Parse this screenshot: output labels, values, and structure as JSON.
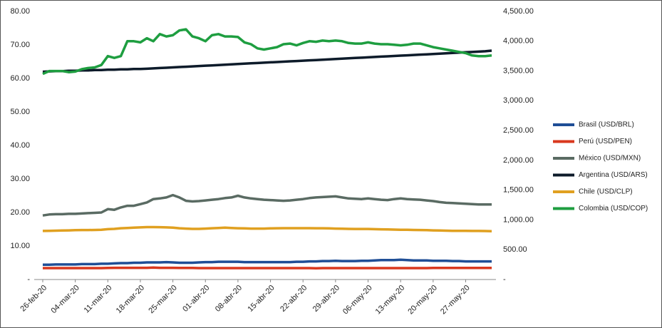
{
  "chart_data": {
    "type": "line",
    "categories": [
      "26-feb-20",
      null,
      null,
      null,
      null,
      "04-mar-20",
      null,
      null,
      null,
      null,
      "11-mar-20",
      null,
      null,
      null,
      null,
      "18-mar-20",
      null,
      null,
      null,
      null,
      "25-mar-20",
      null,
      null,
      null,
      null,
      "01-abr-20",
      null,
      null,
      null,
      null,
      "08-abr-20",
      null,
      null,
      null,
      null,
      "15-abr-20",
      null,
      null,
      null,
      null,
      "22-abr-20",
      null,
      null,
      null,
      null,
      "29-abr-20",
      null,
      null,
      null,
      null,
      "06-may-20",
      null,
      null,
      null,
      null,
      "13-may-20",
      null,
      null,
      null,
      null,
      "20-may-20",
      null,
      null,
      null,
      null,
      "27-may-20",
      null,
      null,
      null,
      null
    ],
    "ylim": [
      0,
      80
    ],
    "yticks": [
      {
        "value": 0,
        "label": "-"
      },
      {
        "value": 10,
        "label": "10.00"
      },
      {
        "value": 20,
        "label": "20.00"
      },
      {
        "value": 30,
        "label": "30.00"
      },
      {
        "value": 40,
        "label": "40.00"
      },
      {
        "value": 50,
        "label": "50.00"
      },
      {
        "value": 60,
        "label": "60.00"
      },
      {
        "value": 70,
        "label": "70.00"
      },
      {
        "value": 80,
        "label": "80.00"
      }
    ],
    "y2lim": [
      0,
      4500
    ],
    "y2ticks": [
      {
        "value": 0,
        "label": "-"
      },
      {
        "value": 500,
        "label": "500.00"
      },
      {
        "value": 1000,
        "label": "1,000.00"
      },
      {
        "value": 1500,
        "label": "1,500.00"
      },
      {
        "value": 2000,
        "label": "2,000.00"
      },
      {
        "value": 2500,
        "label": "2,500.00"
      },
      {
        "value": 3000,
        "label": "3,000.00"
      },
      {
        "value": 3500,
        "label": "3,500.00"
      },
      {
        "value": 4000,
        "label": "4,000.00"
      },
      {
        "value": 4500,
        "label": "4,500.00"
      }
    ],
    "legend": "right",
    "series": [
      {
        "name": "Brasil (USD/BRL)",
        "color": "#1f4e96",
        "values": [
          4.4,
          4.4,
          4.5,
          4.5,
          4.5,
          4.5,
          4.6,
          4.6,
          4.6,
          4.7,
          4.7,
          4.8,
          4.9,
          4.9,
          5.0,
          5.0,
          5.1,
          5.1,
          5.1,
          5.2,
          5.1,
          5.0,
          5.0,
          5.0,
          5.1,
          5.2,
          5.2,
          5.3,
          5.3,
          5.3,
          5.3,
          5.2,
          5.2,
          5.2,
          5.2,
          5.2,
          5.2,
          5.2,
          5.2,
          5.3,
          5.3,
          5.4,
          5.4,
          5.5,
          5.5,
          5.6,
          5.5,
          5.5,
          5.5,
          5.6,
          5.6,
          5.7,
          5.8,
          5.8,
          5.8,
          5.9,
          5.8,
          5.7,
          5.7,
          5.7,
          5.6,
          5.6,
          5.6,
          5.5,
          5.5,
          5.4,
          5.4,
          5.4,
          5.4,
          5.4
        ]
      },
      {
        "name": "Perú (USD/PEN)",
        "color": "#d9381e",
        "values": [
          3.4,
          3.4,
          3.4,
          3.4,
          3.4,
          3.4,
          3.4,
          3.4,
          3.4,
          3.4,
          3.45,
          3.5,
          3.5,
          3.5,
          3.5,
          3.5,
          3.5,
          3.55,
          3.5,
          3.5,
          3.5,
          3.45,
          3.45,
          3.45,
          3.4,
          3.4,
          3.4,
          3.4,
          3.4,
          3.4,
          3.4,
          3.4,
          3.4,
          3.4,
          3.4,
          3.4,
          3.4,
          3.4,
          3.4,
          3.4,
          3.4,
          3.4,
          3.35,
          3.4,
          3.4,
          3.4,
          3.4,
          3.4,
          3.4,
          3.4,
          3.4,
          3.4,
          3.4,
          3.4,
          3.4,
          3.4,
          3.4,
          3.4,
          3.4,
          3.4,
          3.45,
          3.45,
          3.45,
          3.45,
          3.45,
          3.45,
          3.45,
          3.45,
          3.45,
          3.45
        ]
      },
      {
        "name": "México (USD/MXN)",
        "color": "#5a6b63",
        "values": [
          19.1,
          19.4,
          19.5,
          19.5,
          19.6,
          19.6,
          19.7,
          19.8,
          19.9,
          20.0,
          21.0,
          20.8,
          21.5,
          22.0,
          22.0,
          22.5,
          23.0,
          24.0,
          24.2,
          24.5,
          25.2,
          24.5,
          23.5,
          23.3,
          23.4,
          23.6,
          23.8,
          24.0,
          24.3,
          24.5,
          25.0,
          24.5,
          24.2,
          24.0,
          23.8,
          23.7,
          23.6,
          23.5,
          23.6,
          23.8,
          24.0,
          24.3,
          24.5,
          24.6,
          24.7,
          24.8,
          24.5,
          24.2,
          24.1,
          24.0,
          24.2,
          24.0,
          23.8,
          23.7,
          24.0,
          24.2,
          24.0,
          23.9,
          23.8,
          23.6,
          23.4,
          23.1,
          22.9,
          22.8,
          22.7,
          22.6,
          22.5,
          22.4,
          22.4,
          22.4
        ]
      },
      {
        "name": "Argentina (USD/ARS)",
        "color": "#0d1b2a",
        "values": [
          62.0,
          62.1,
          62.2,
          62.2,
          62.3,
          62.3,
          62.4,
          62.4,
          62.5,
          62.5,
          62.6,
          62.6,
          62.7,
          62.7,
          62.8,
          62.8,
          62.9,
          63.0,
          63.1,
          63.2,
          63.3,
          63.4,
          63.5,
          63.6,
          63.7,
          63.8,
          63.9,
          64.0,
          64.1,
          64.2,
          64.3,
          64.4,
          64.5,
          64.6,
          64.7,
          64.8,
          64.9,
          65.0,
          65.1,
          65.2,
          65.3,
          65.4,
          65.5,
          65.6,
          65.7,
          65.8,
          65.9,
          66.0,
          66.1,
          66.2,
          66.3,
          66.4,
          66.5,
          66.6,
          66.7,
          66.8,
          66.9,
          67.0,
          67.1,
          67.2,
          67.3,
          67.4,
          67.5,
          67.6,
          67.7,
          67.8,
          67.9,
          68.0,
          68.1,
          68.3
        ]
      },
      {
        "name": "Chile (USD/CLP)",
        "color": "#e0a020",
        "axis": "y2",
        "values": [
          815,
          818,
          820,
          822,
          825,
          828,
          830,
          830,
          832,
          835,
          845,
          850,
          860,
          865,
          870,
          875,
          880,
          880,
          878,
          875,
          870,
          860,
          855,
          850,
          850,
          855,
          860,
          865,
          870,
          865,
          860,
          858,
          855,
          855,
          855,
          858,
          860,
          862,
          862,
          862,
          862,
          862,
          860,
          860,
          858,
          855,
          852,
          850,
          848,
          848,
          848,
          845,
          842,
          840,
          838,
          835,
          835,
          832,
          830,
          828,
          825,
          822,
          820,
          818,
          818,
          816,
          815,
          815,
          814,
          812
        ]
      },
      {
        "name": "Colombia (USD/COP)",
        "color": "#1e9e40",
        "axis": "y2",
        "values": [
          3450,
          3500,
          3500,
          3500,
          3480,
          3490,
          3530,
          3550,
          3560,
          3600,
          3750,
          3720,
          3750,
          4000,
          4000,
          3980,
          4050,
          4000,
          4120,
          4080,
          4100,
          4180,
          4200,
          4080,
          4050,
          4000,
          4100,
          4120,
          4080,
          4080,
          4070,
          3980,
          3950,
          3880,
          3860,
          3880,
          3900,
          3950,
          3960,
          3930,
          3970,
          4000,
          3990,
          4010,
          4000,
          4010,
          4000,
          3970,
          3960,
          3960,
          3980,
          3960,
          3950,
          3950,
          3940,
          3930,
          3940,
          3960,
          3960,
          3930,
          3900,
          3880,
          3860,
          3840,
          3820,
          3800,
          3760,
          3750,
          3750,
          3760
        ]
      }
    ]
  }
}
